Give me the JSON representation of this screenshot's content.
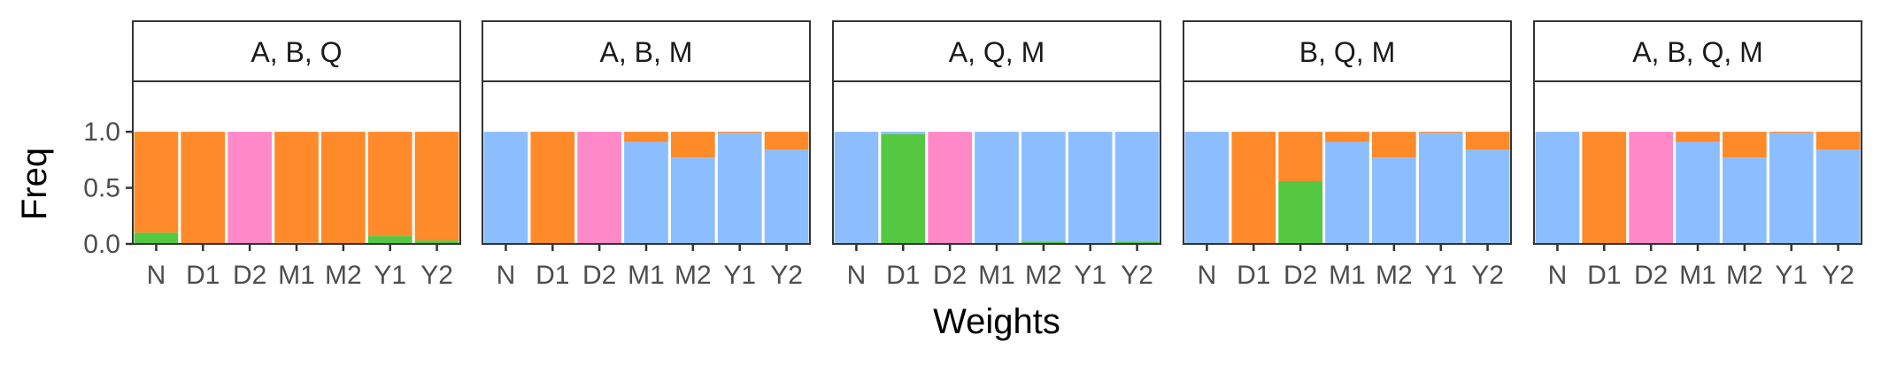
{
  "chart_data": {
    "type": "bar",
    "stacked": true,
    "xlabel": "Weights",
    "ylabel": "Freq",
    "ylim": [
      0,
      1.45
    ],
    "yticks": [
      "0.0",
      "0.5",
      "1.0"
    ],
    "categories": [
      "N",
      "D1",
      "D2",
      "M1",
      "M2",
      "Y1",
      "Y2"
    ],
    "stack_colors": [
      "#53c840",
      "#8cbeff",
      "#ff88c8",
      "#ff8a2a"
    ],
    "grid": false,
    "legend": "none",
    "panels": [
      {
        "title": "A, B, Q",
        "bars": [
          [
            0.1,
            0.0,
            0.0,
            0.9
          ],
          [
            0.0,
            0.0,
            0.0,
            1.0
          ],
          [
            0.0,
            0.0,
            1.0,
            0.0
          ],
          [
            0.01,
            0.0,
            0.0,
            0.99
          ],
          [
            0.0,
            0.0,
            0.0,
            1.0
          ],
          [
            0.07,
            0.0,
            0.0,
            0.93
          ],
          [
            0.03,
            0.0,
            0.0,
            0.97
          ]
        ]
      },
      {
        "title": "A, B, M",
        "bars": [
          [
            0.0,
            1.0,
            0.0,
            0.0
          ],
          [
            0.0,
            0.0,
            0.0,
            1.0
          ],
          [
            0.0,
            0.0,
            1.0,
            0.0
          ],
          [
            0.0,
            0.91,
            0.0,
            0.09
          ],
          [
            0.0,
            0.77,
            0.0,
            0.23
          ],
          [
            0.0,
            0.99,
            0.0,
            0.01
          ],
          [
            0.0,
            0.84,
            0.0,
            0.16
          ]
        ]
      },
      {
        "title": "A, Q, M",
        "bars": [
          [
            0.0,
            1.0,
            0.0,
            0.0
          ],
          [
            0.98,
            0.02,
            0.0,
            0.0
          ],
          [
            0.0,
            0.0,
            1.0,
            0.0
          ],
          [
            0.0,
            1.0,
            0.0,
            0.0
          ],
          [
            0.02,
            0.98,
            0.0,
            0.0
          ],
          [
            0.0,
            1.0,
            0.0,
            0.0
          ],
          [
            0.02,
            0.98,
            0.0,
            0.0
          ]
        ]
      },
      {
        "title": "B, Q, M",
        "bars": [
          [
            0.0,
            1.0,
            0.0,
            0.0
          ],
          [
            0.0,
            0.0,
            0.0,
            1.0
          ],
          [
            0.56,
            0.0,
            0.0,
            0.44
          ],
          [
            0.0,
            0.91,
            0.0,
            0.09
          ],
          [
            0.0,
            0.77,
            0.0,
            0.23
          ],
          [
            0.0,
            0.99,
            0.0,
            0.01
          ],
          [
            0.0,
            0.84,
            0.0,
            0.16
          ]
        ]
      },
      {
        "title": "A, B, Q, M",
        "bars": [
          [
            0.0,
            1.0,
            0.0,
            0.0
          ],
          [
            0.0,
            0.0,
            0.0,
            1.0
          ],
          [
            0.0,
            0.0,
            1.0,
            0.0
          ],
          [
            0.0,
            0.91,
            0.0,
            0.09
          ],
          [
            0.0,
            0.77,
            0.0,
            0.23
          ],
          [
            0.0,
            0.99,
            0.0,
            0.01
          ],
          [
            0.0,
            0.84,
            0.0,
            0.16
          ]
        ]
      }
    ]
  }
}
